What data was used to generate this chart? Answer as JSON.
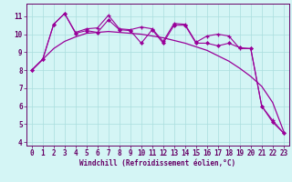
{
  "xlabel": "Windchill (Refroidissement éolien,°C)",
  "background_color": "#d4f5f5",
  "grid_color": "#aadddd",
  "line_color": "#990099",
  "xlim": [
    -0.5,
    23.5
  ],
  "ylim": [
    3.8,
    11.7
  ],
  "yticks": [
    4,
    5,
    6,
    7,
    8,
    9,
    10,
    11
  ],
  "xticks": [
    0,
    1,
    2,
    3,
    4,
    5,
    6,
    7,
    8,
    9,
    10,
    11,
    12,
    13,
    14,
    15,
    16,
    17,
    18,
    19,
    20,
    21,
    22,
    23
  ],
  "line1_x": [
    0,
    1,
    2,
    3,
    4,
    5,
    6,
    7,
    8,
    9,
    10,
    11,
    12,
    13,
    14,
    15,
    16,
    17,
    18,
    19,
    20,
    21,
    22,
    23
  ],
  "line1_y": [
    8.0,
    8.6,
    9.2,
    9.6,
    9.85,
    10.05,
    10.1,
    10.15,
    10.1,
    10.05,
    10.0,
    9.9,
    9.8,
    9.65,
    9.5,
    9.3,
    9.1,
    8.8,
    8.5,
    8.1,
    7.65,
    7.1,
    6.2,
    4.6
  ],
  "line2_x": [
    0,
    1,
    2,
    3,
    4,
    5,
    6,
    7,
    8,
    9,
    10,
    11,
    12,
    13,
    14,
    15,
    16,
    17,
    18,
    19,
    20,
    21,
    22,
    23
  ],
  "line2_y": [
    8.0,
    8.6,
    10.55,
    11.15,
    10.1,
    10.3,
    10.35,
    11.05,
    10.3,
    10.25,
    10.4,
    10.3,
    9.6,
    10.6,
    10.55,
    9.55,
    9.9,
    10.0,
    9.9,
    9.2,
    9.2,
    6.0,
    5.2,
    4.5
  ],
  "line3_x": [
    0,
    1,
    2,
    3,
    4,
    5,
    6,
    7,
    8,
    9,
    10,
    11,
    12,
    13,
    14,
    15,
    16,
    17,
    18,
    19,
    20,
    21,
    22,
    23
  ],
  "line3_y": [
    8.0,
    8.6,
    10.55,
    11.15,
    10.05,
    10.2,
    10.1,
    10.8,
    10.25,
    10.2,
    9.5,
    10.25,
    9.5,
    10.5,
    10.5,
    9.5,
    9.5,
    9.35,
    9.5,
    9.25,
    9.2,
    6.0,
    5.1,
    4.5
  ],
  "xlabel_fontsize": 5.5,
  "tick_fontsize": 5.5,
  "tick_color": "#660066",
  "spine_color": "#660066"
}
